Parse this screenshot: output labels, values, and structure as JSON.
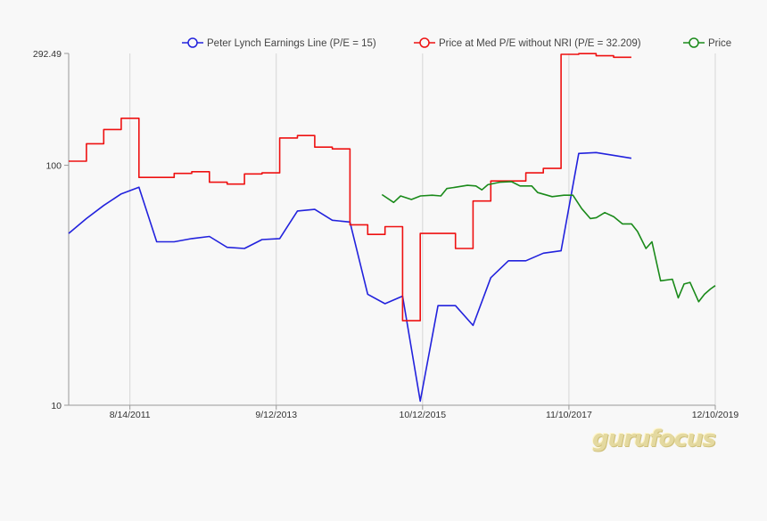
{
  "watermark": "gurufocus",
  "chart_data": {
    "type": "line",
    "title": "",
    "xlabel": "",
    "ylabel": "",
    "scale_y": "log",
    "ylim": [
      10,
      292.49
    ],
    "y_ticks": [
      {
        "value": 10,
        "label": "10"
      },
      {
        "value": 100,
        "label": "100"
      },
      {
        "value": 292.49,
        "label": "292.49"
      }
    ],
    "x_range": [
      "2010-09-30",
      "2019-12-10"
    ],
    "x_ticks": [
      {
        "date": "2011-08-14",
        "label": "8/14/2011"
      },
      {
        "date": "2013-09-12",
        "label": "9/12/2013"
      },
      {
        "date": "2015-10-12",
        "label": "10/12/2015"
      },
      {
        "date": "2017-11-10",
        "label": "11/10/2017"
      },
      {
        "date": "2019-12-10",
        "label": "12/10/2019"
      }
    ],
    "grid": "vertical",
    "legend": "top-right",
    "series": [
      {
        "name": "Peter Lynch Earnings Line (P/E = 15)",
        "color": "#2222dd",
        "step": false,
        "points": [
          [
            "2010-09-30",
            52
          ],
          [
            "2010-12-31",
            60
          ],
          [
            "2011-03-31",
            68
          ],
          [
            "2011-06-30",
            76
          ],
          [
            "2011-09-30",
            81
          ],
          [
            "2011-12-31",
            48
          ],
          [
            "2012-03-31",
            48
          ],
          [
            "2012-06-30",
            49.5
          ],
          [
            "2012-09-30",
            50.5
          ],
          [
            "2012-12-31",
            45.5
          ],
          [
            "2013-03-31",
            45
          ],
          [
            "2013-06-30",
            49
          ],
          [
            "2013-09-30",
            49.5
          ],
          [
            "2013-12-31",
            64.5
          ],
          [
            "2014-03-31",
            65.5
          ],
          [
            "2014-06-30",
            59
          ],
          [
            "2014-09-30",
            58
          ],
          [
            "2014-12-31",
            29
          ],
          [
            "2015-03-31",
            26.5
          ],
          [
            "2015-06-30",
            28.5
          ],
          [
            "2015-09-30",
            10.4
          ],
          [
            "2015-12-31",
            26
          ],
          [
            "2016-03-31",
            26
          ],
          [
            "2016-06-30",
            21.5
          ],
          [
            "2016-09-30",
            34
          ],
          [
            "2016-12-31",
            40
          ],
          [
            "2017-03-31",
            40
          ],
          [
            "2017-06-30",
            43
          ],
          [
            "2017-09-30",
            44
          ],
          [
            "2017-12-31",
            112
          ],
          [
            "2018-03-31",
            113
          ],
          [
            "2018-06-30",
            110
          ],
          [
            "2018-09-30",
            107
          ]
        ]
      },
      {
        "name": "Price at Med P/E without NRI (P/E = 32.209)",
        "color": "#ee1111",
        "step": true,
        "points": [
          [
            "2010-09-30",
            104
          ],
          [
            "2010-12-31",
            123
          ],
          [
            "2011-03-31",
            141
          ],
          [
            "2011-06-30",
            157
          ],
          [
            "2011-09-30",
            89
          ],
          [
            "2011-12-31",
            89
          ],
          [
            "2012-03-31",
            92.5
          ],
          [
            "2012-06-30",
            94
          ],
          [
            "2012-09-30",
            85
          ],
          [
            "2012-12-31",
            83.5
          ],
          [
            "2013-03-31",
            92
          ],
          [
            "2013-06-30",
            93
          ],
          [
            "2013-09-30",
            130
          ],
          [
            "2013-12-31",
            133
          ],
          [
            "2014-03-31",
            119
          ],
          [
            "2014-06-30",
            117
          ],
          [
            "2014-09-30",
            56.5
          ],
          [
            "2014-12-31",
            51.5
          ],
          [
            "2015-03-31",
            55.5
          ],
          [
            "2015-06-30",
            22.5
          ],
          [
            "2015-09-30",
            52
          ],
          [
            "2015-12-31",
            52
          ],
          [
            "2016-03-31",
            45
          ],
          [
            "2016-06-30",
            71
          ],
          [
            "2016-09-30",
            86
          ],
          [
            "2016-12-31",
            86
          ],
          [
            "2017-03-31",
            93
          ],
          [
            "2017-06-30",
            97
          ],
          [
            "2017-09-30",
            290
          ],
          [
            "2017-12-31",
            292
          ],
          [
            "2018-03-31",
            286
          ],
          [
            "2018-06-30",
            282
          ],
          [
            "2018-09-30",
            282
          ]
        ]
      },
      {
        "name": "Price",
        "color": "#1a8a1a",
        "step": false,
        "points": [
          [
            "2015-03-15",
            75.5
          ],
          [
            "2015-05-15",
            70
          ],
          [
            "2015-06-20",
            74.5
          ],
          [
            "2015-08-15",
            72
          ],
          [
            "2015-10-01",
            74.5
          ],
          [
            "2015-12-01",
            75
          ],
          [
            "2016-01-15",
            74.5
          ],
          [
            "2016-02-15",
            80
          ],
          [
            "2016-04-01",
            81
          ],
          [
            "2016-06-01",
            82.5
          ],
          [
            "2016-07-15",
            82
          ],
          [
            "2016-08-15",
            79
          ],
          [
            "2016-09-15",
            83
          ],
          [
            "2016-11-15",
            85
          ],
          [
            "2017-01-15",
            85.5
          ],
          [
            "2017-03-01",
            82
          ],
          [
            "2017-05-01",
            82
          ],
          [
            "2017-06-01",
            77
          ],
          [
            "2017-08-15",
            74
          ],
          [
            "2017-10-15",
            75
          ],
          [
            "2017-12-01",
            75
          ],
          [
            "2018-01-15",
            66
          ],
          [
            "2018-03-01",
            60
          ],
          [
            "2018-04-01",
            60.5
          ],
          [
            "2018-05-15",
            63.5
          ],
          [
            "2018-07-01",
            61
          ],
          [
            "2018-08-15",
            57
          ],
          [
            "2018-10-01",
            57
          ],
          [
            "2018-11-01",
            53
          ],
          [
            "2018-12-15",
            45
          ],
          [
            "2019-01-15",
            48
          ],
          [
            "2019-03-01",
            33
          ],
          [
            "2019-05-01",
            33.5
          ],
          [
            "2019-06-01",
            28
          ],
          [
            "2019-07-01",
            32
          ],
          [
            "2019-08-01",
            32.5
          ],
          [
            "2019-09-15",
            27
          ],
          [
            "2019-10-15",
            29
          ],
          [
            "2019-11-15",
            30.5
          ],
          [
            "2019-12-10",
            31.5
          ]
        ]
      }
    ]
  }
}
